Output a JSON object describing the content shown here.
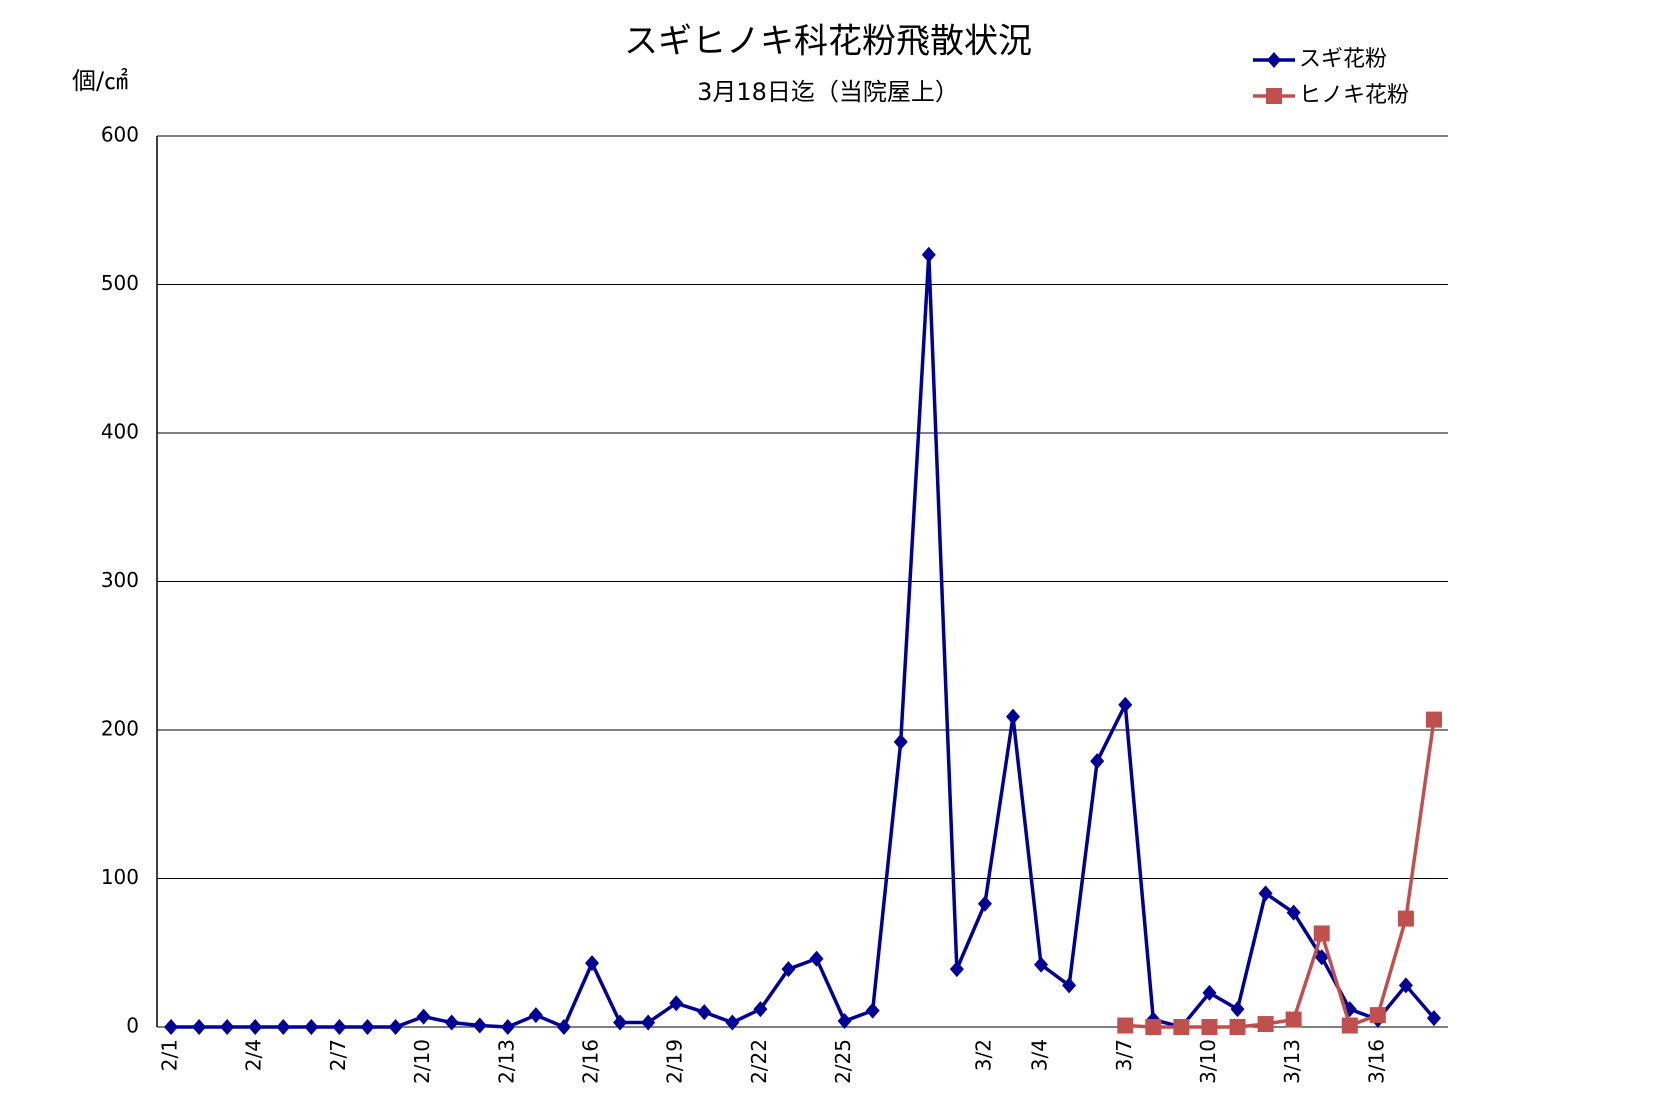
{
  "chart_data": {
    "type": "line",
    "title": "スギヒノキ科花粉飛散状況",
    "subtitle": "3月18日迄（当院屋上）",
    "y_label": "個/㎠",
    "categories": [
      "2/1",
      null,
      null,
      "2/4",
      null,
      null,
      "2/7",
      null,
      null,
      "2/10",
      null,
      null,
      "2/13",
      null,
      null,
      "2/16",
      null,
      null,
      "2/19",
      null,
      null,
      "2/22",
      null,
      null,
      "2/25",
      null,
      null,
      null,
      null,
      "3/2",
      null,
      "3/4",
      null,
      null,
      "3/7",
      null,
      null,
      "3/10",
      null,
      null,
      "3/13",
      null,
      null,
      "3/16",
      null,
      null
    ],
    "series": [
      {
        "name": "スギ花粉",
        "color": "#000099",
        "marker": "diamond",
        "values": [
          0,
          0,
          0,
          0,
          0,
          0,
          0,
          0,
          0,
          7,
          3,
          1,
          0,
          8,
          0,
          43,
          3,
          3,
          16,
          10,
          3,
          12,
          39,
          46,
          4,
          11,
          192,
          520,
          39,
          83,
          209,
          42,
          28,
          179,
          217,
          5,
          0,
          23,
          12,
          90,
          77,
          47,
          12,
          5,
          28,
          6
        ]
      },
      {
        "name": "ヒノキ花粉",
        "color": "#c0504d",
        "marker": "square",
        "values": [
          null,
          null,
          null,
          null,
          null,
          null,
          null,
          null,
          null,
          null,
          null,
          null,
          null,
          null,
          null,
          null,
          null,
          null,
          null,
          null,
          null,
          null,
          null,
          null,
          null,
          null,
          null,
          null,
          null,
          null,
          null,
          null,
          null,
          null,
          1,
          0,
          0,
          0,
          0,
          2,
          5,
          63,
          1,
          8,
          73,
          207
        ]
      }
    ],
    "ylim": [
      0,
      600
    ],
    "yticks": [
      0,
      100,
      200,
      300,
      400,
      500,
      600
    ],
    "grid": true,
    "legend": "top-right"
  }
}
